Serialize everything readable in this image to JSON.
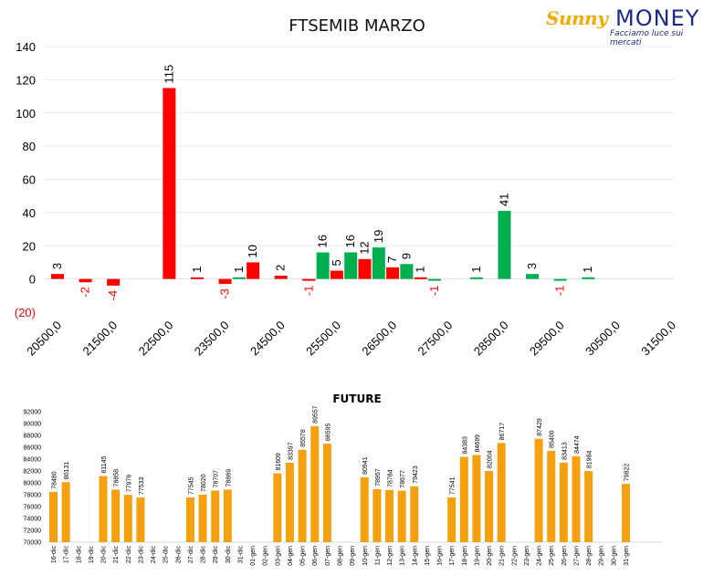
{
  "logo": {
    "brand_left": "Sunny",
    "brand_right": "MONEY",
    "tagline": "Facciamo luce sui mercati"
  },
  "chart_data": [
    {
      "type": "bar",
      "title": "FTSEMIB MARZO",
      "xlabel": "",
      "ylabel": "",
      "ylim": [
        -20,
        140
      ],
      "yticks": [
        140,
        120,
        100,
        80,
        60,
        40,
        20,
        0,
        -20
      ],
      "ytick_labels": [
        "140",
        "120",
        "100",
        "80",
        "60",
        "40",
        "20",
        "0",
        "(20)"
      ],
      "xticks": [
        "20500,0",
        "21500,0",
        "22500,0",
        "23500,0",
        "24500,0",
        "25500,0",
        "26500,0",
        "27500,0",
        "28500,0",
        "29500,0",
        "30500,0",
        "31500,0"
      ],
      "grid": true,
      "colors": {
        "red": "#ff0000",
        "green": "#00b050",
        "negative_label": "#ff0000"
      },
      "bars": [
        {
          "strike": 20500,
          "series": "red",
          "value": 3
        },
        {
          "strike": 21000,
          "series": "red",
          "value": -2
        },
        {
          "strike": 21500,
          "series": "red",
          "value": -4
        },
        {
          "strike": 22500,
          "series": "red",
          "value": 115
        },
        {
          "strike": 23000,
          "series": "red",
          "value": 1
        },
        {
          "strike": 23500,
          "series": "red",
          "value": -3
        },
        {
          "strike": 23750,
          "series": "green",
          "value": 1
        },
        {
          "strike": 24000,
          "series": "red",
          "value": 10
        },
        {
          "strike": 24500,
          "series": "red",
          "value": 2
        },
        {
          "strike": 25000,
          "series": "red",
          "value": -1
        },
        {
          "strike": 25250,
          "series": "green",
          "value": 16
        },
        {
          "strike": 25500,
          "series": "red",
          "value": 5
        },
        {
          "strike": 25750,
          "series": "green",
          "value": 16
        },
        {
          "strike": 26000,
          "series": "red",
          "value": 12
        },
        {
          "strike": 26250,
          "series": "green",
          "value": 19
        },
        {
          "strike": 26500,
          "series": "red",
          "value": 7
        },
        {
          "strike": 26750,
          "series": "green",
          "value": 9
        },
        {
          "strike": 27000,
          "series": "red",
          "value": 1
        },
        {
          "strike": 27250,
          "series": "green",
          "value": -1
        },
        {
          "strike": 28000,
          "series": "green",
          "value": 1
        },
        {
          "strike": 28500,
          "series": "green",
          "value": 41
        },
        {
          "strike": 29000,
          "series": "green",
          "value": 3
        },
        {
          "strike": 29500,
          "series": "green",
          "value": -1
        },
        {
          "strike": 30000,
          "series": "green",
          "value": 1
        }
      ]
    },
    {
      "type": "bar",
      "title": "FUTURE",
      "xlabel": "",
      "ylabel": "",
      "ylim": [
        70000,
        92000
      ],
      "yticks": [
        92000,
        90000,
        88000,
        86000,
        84000,
        82000,
        80000,
        78000,
        76000,
        74000,
        72000,
        70000
      ],
      "color": "#f5a10f",
      "grid": false,
      "categories": [
        "16-dic",
        "17-dic",
        "18-dic",
        "19-dic",
        "20-dic",
        "21-dic",
        "22-dic",
        "23-dic",
        "24-dic",
        "25-dic",
        "26-dic",
        "27-dic",
        "28-dic",
        "29-dic",
        "30-dic",
        "31-dic",
        "01-gen",
        "02-gen",
        "03-gen",
        "04-gen",
        "05-gen",
        "06-gen",
        "07-gen",
        "08-gen",
        "09-gen",
        "10-gen",
        "11-gen",
        "12-gen",
        "13-gen",
        "14-gen",
        "15-gen",
        "16-gen",
        "17-gen",
        "18-gen",
        "19-gen",
        "20-gen",
        "21-gen",
        "22-gen",
        "23-gen",
        "24-gen",
        "25-gen",
        "26-gen",
        "27-gen",
        "28-gen",
        "29-gen",
        "30-gen",
        "31-gen"
      ],
      "values": [
        78480,
        80131,
        null,
        null,
        81145,
        78858,
        77976,
        77533,
        null,
        null,
        null,
        77545,
        78020,
        78707,
        78869,
        null,
        null,
        null,
        81609,
        83397,
        85578,
        89557,
        86595,
        null,
        null,
        80941,
        78957,
        78784,
        78677,
        79423,
        null,
        null,
        77541,
        84383,
        84699,
        82004,
        86717,
        null,
        null,
        87429,
        85400,
        83413,
        84474,
        81984,
        null,
        null,
        79822
      ]
    }
  ]
}
